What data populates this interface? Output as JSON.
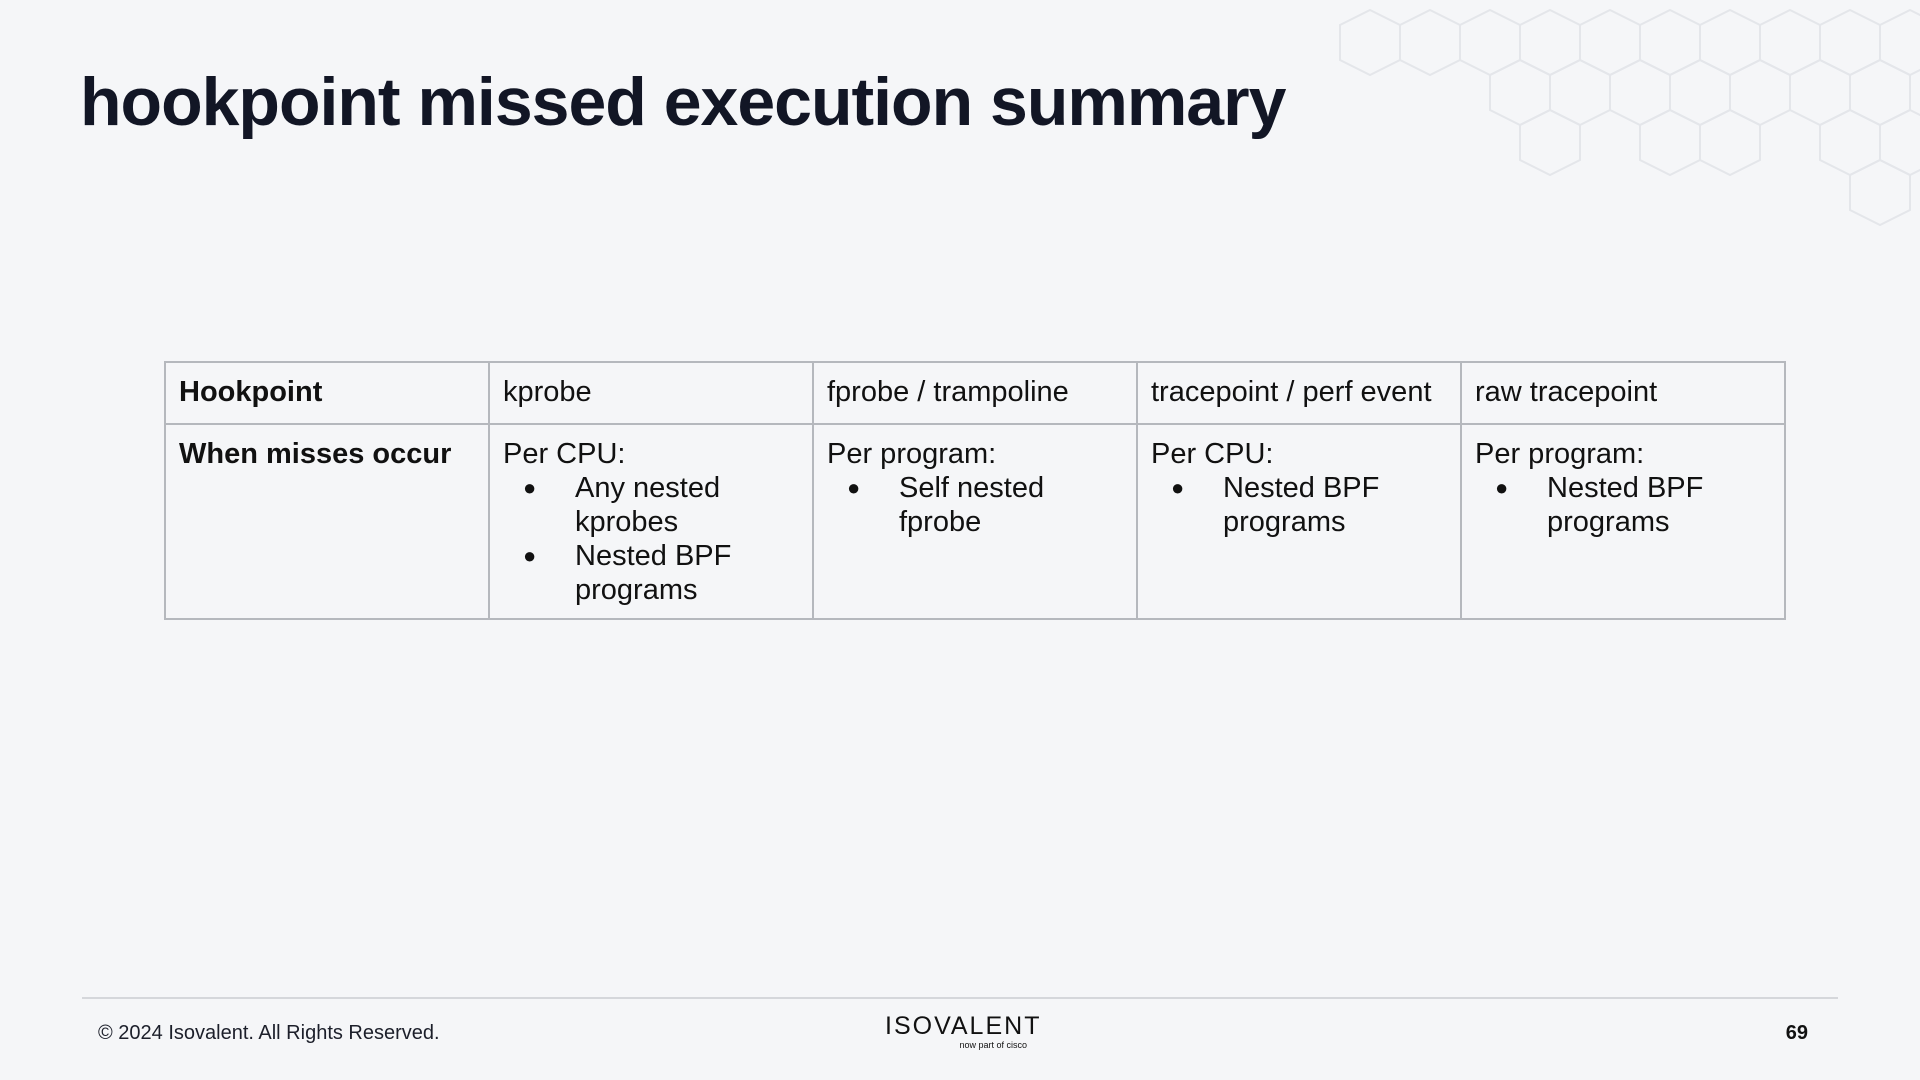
{
  "slide": {
    "title": "hookpoint missed execution summary"
  },
  "table": {
    "header_row": {
      "label": "Hookpoint",
      "cells": [
        "kprobe",
        "fprobe / trampoline",
        "tracepoint / perf event",
        "raw tracepoint"
      ]
    },
    "body_row": {
      "label": "When misses occur",
      "cells": [
        {
          "title": "Per CPU:",
          "items": [
            "Any nested kprobes",
            "Nested BPF programs"
          ]
        },
        {
          "title": "Per program:",
          "items": [
            "Self nested fprobe"
          ]
        },
        {
          "title": "Per CPU:",
          "items": [
            "Nested BPF programs"
          ]
        },
        {
          "title": "Per program:",
          "items": [
            "Nested BPF programs"
          ]
        }
      ]
    },
    "bullet_glyph": "●"
  },
  "footer": {
    "copyright": "© 2024 Isovalent. All Rights Reserved.",
    "logo_text": "ISOVALENT",
    "logo_subtext": "now part of cisco",
    "page_number": "69"
  },
  "colors": {
    "background": "#f5f6f8",
    "title": "#121625",
    "table_border": "#b5b8bd",
    "hex_pattern": "#e6e8ec"
  }
}
